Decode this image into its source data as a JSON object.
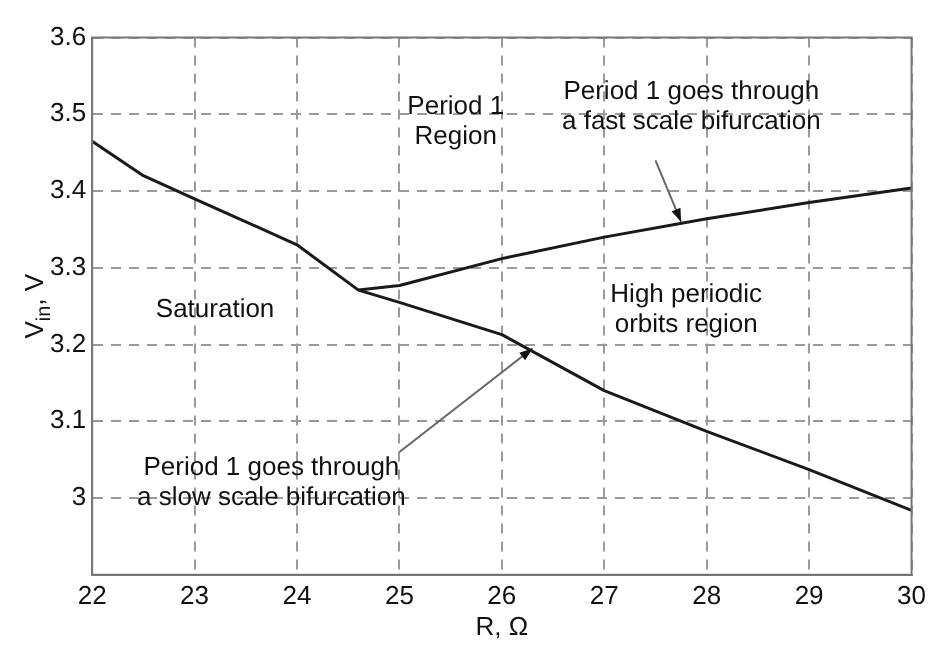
{
  "chart_data": {
    "type": "line",
    "xlabel": "R, Ω",
    "ylabel": "V$_{in}$, V",
    "xlim": [
      22,
      30
    ],
    "xticks": [
      22,
      23,
      24,
      25,
      26,
      27,
      28,
      29,
      30
    ],
    "ylim": [
      2.9,
      3.6
    ],
    "yticks": [
      3,
      3.1,
      3.2,
      3.3,
      3.4,
      3.5,
      3.6
    ],
    "grid": true,
    "line_style": "solid",
    "marker": "none",
    "series": [
      {
        "color": "#1a1a1a",
        "x": [
          22,
          22.5,
          23,
          24,
          24.6,
          25,
          26,
          27,
          28,
          29,
          30
        ],
        "values": [
          3.465,
          3.42,
          3.39,
          3.33,
          3.271,
          3.255,
          3.213,
          3.14,
          3.087,
          3.037,
          2.984
        ]
      },
      {
        "color": "#1a1a1a",
        "x": [
          24.6,
          25,
          26,
          27,
          28,
          29,
          30
        ],
        "values": [
          3.271,
          3.277,
          3.312,
          3.34,
          3.364,
          3.385,
          3.404
        ]
      }
    ],
    "annotations": [
      "Period 1\nRegion",
      "Saturation",
      "High periodic\norbits region",
      {
        "text": "Period 1 goes through\na fast scale bifurcation",
        "x": 27.75,
        "y": 3.36
      },
      {
        "text": "Period 1 goes through\na slow scale bifurcation",
        "x": 26.3,
        "y": 3.195
      }
    ]
  }
}
